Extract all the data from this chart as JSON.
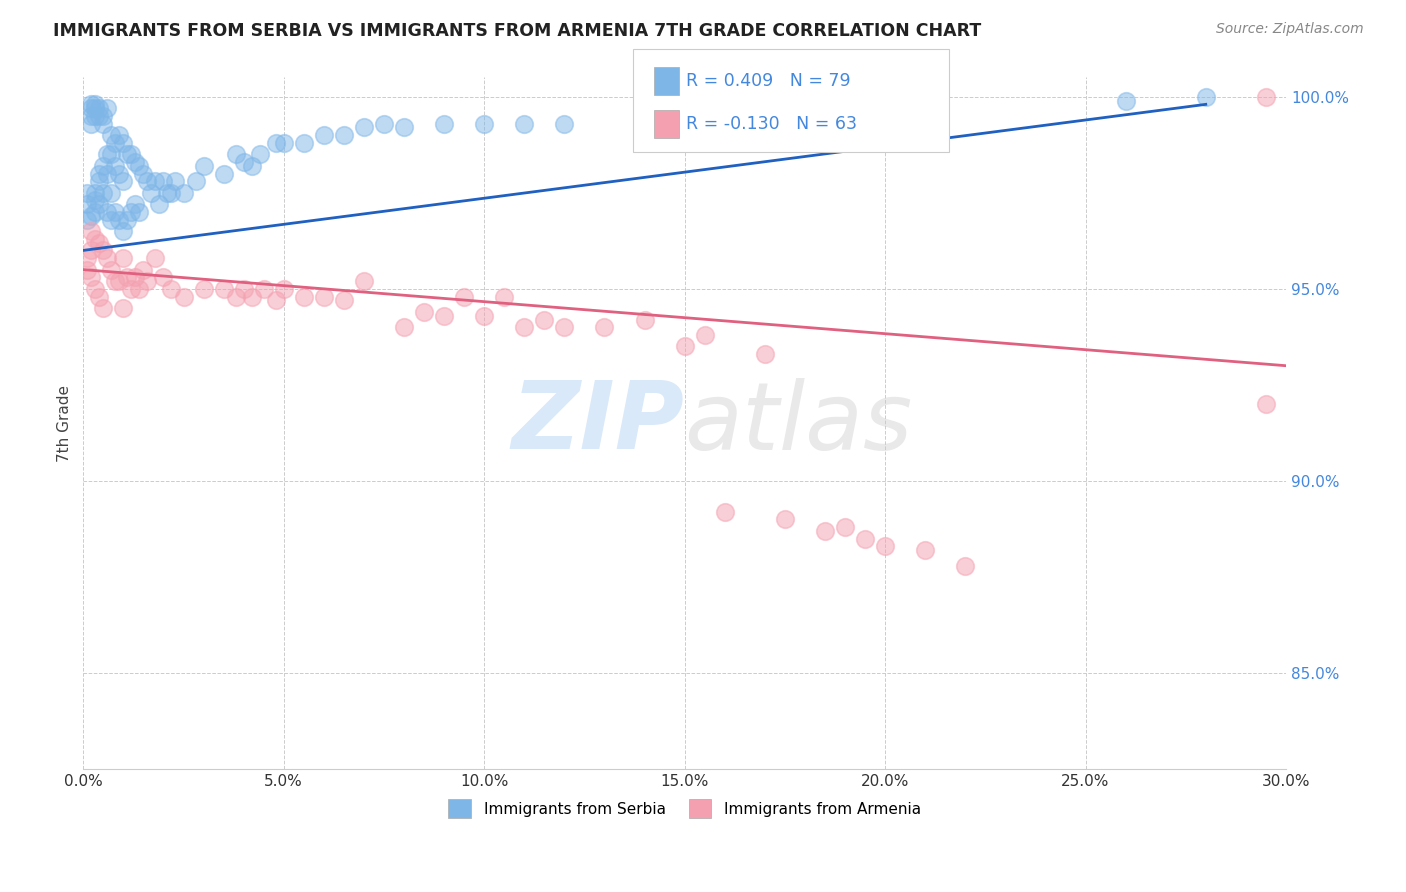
{
  "title": "IMMIGRANTS FROM SERBIA VS IMMIGRANTS FROM ARMENIA 7TH GRADE CORRELATION CHART",
  "source": "Source: ZipAtlas.com",
  "ylabel": "7th Grade",
  "xlim": [
    0.0,
    0.3
  ],
  "ylim": [
    0.825,
    1.005
  ],
  "xticks": [
    0.0,
    0.05,
    0.1,
    0.15,
    0.2,
    0.25,
    0.3
  ],
  "xticklabels": [
    "0.0%",
    "5.0%",
    "10.0%",
    "15.0%",
    "20.0%",
    "25.0%",
    "30.0%"
  ],
  "yticks": [
    0.85,
    0.9,
    0.95,
    1.0
  ],
  "yticklabels": [
    "85.0%",
    "90.0%",
    "95.0%",
    "100.0%"
  ],
  "serbia_color": "#7eb6e8",
  "armenia_color": "#f4a0b0",
  "trend_serbia_color": "#2060c0",
  "trend_armenia_color": "#e06080",
  "legend_r_serbia": "R = 0.409",
  "legend_n_serbia": "N = 79",
  "legend_r_armenia": "R = -0.130",
  "legend_n_armenia": "N = 63",
  "legend_label_serbia": "Immigrants from Serbia",
  "legend_label_armenia": "Immigrants from Armenia",
  "watermark_zip": "ZIP",
  "watermark_atlas": "atlas",
  "trend_serbia_x0": 0.0,
  "trend_serbia_x1": 0.28,
  "trend_serbia_y0": 0.96,
  "trend_serbia_y1": 0.998,
  "trend_armenia_x0": 0.0,
  "trend_armenia_x1": 0.3,
  "trend_armenia_y0": 0.955,
  "trend_armenia_y1": 0.93,
  "serbia_x": [
    0.001,
    0.001,
    0.001,
    0.002,
    0.002,
    0.002,
    0.002,
    0.002,
    0.003,
    0.003,
    0.003,
    0.003,
    0.003,
    0.003,
    0.004,
    0.004,
    0.004,
    0.004,
    0.004,
    0.005,
    0.005,
    0.005,
    0.005,
    0.006,
    0.006,
    0.006,
    0.006,
    0.007,
    0.007,
    0.007,
    0.007,
    0.008,
    0.008,
    0.008,
    0.009,
    0.009,
    0.009,
    0.01,
    0.01,
    0.01,
    0.011,
    0.011,
    0.012,
    0.012,
    0.013,
    0.013,
    0.014,
    0.014,
    0.015,
    0.016,
    0.017,
    0.018,
    0.019,
    0.02,
    0.021,
    0.022,
    0.023,
    0.025,
    0.028,
    0.03,
    0.035,
    0.038,
    0.04,
    0.042,
    0.044,
    0.048,
    0.05,
    0.055,
    0.06,
    0.065,
    0.07,
    0.075,
    0.08,
    0.09,
    0.1,
    0.11,
    0.12,
    0.26,
    0.28
  ],
  "serbia_y": [
    0.975,
    0.972,
    0.968,
    0.998,
    0.997,
    0.995,
    0.993,
    0.969,
    0.998,
    0.997,
    0.995,
    0.975,
    0.973,
    0.97,
    0.997,
    0.995,
    0.98,
    0.978,
    0.972,
    0.995,
    0.993,
    0.982,
    0.975,
    0.997,
    0.985,
    0.98,
    0.97,
    0.99,
    0.985,
    0.975,
    0.968,
    0.988,
    0.982,
    0.97,
    0.99,
    0.98,
    0.968,
    0.988,
    0.978,
    0.965,
    0.985,
    0.968,
    0.985,
    0.97,
    0.983,
    0.972,
    0.982,
    0.97,
    0.98,
    0.978,
    0.975,
    0.978,
    0.972,
    0.978,
    0.975,
    0.975,
    0.978,
    0.975,
    0.978,
    0.982,
    0.98,
    0.985,
    0.983,
    0.982,
    0.985,
    0.988,
    0.988,
    0.988,
    0.99,
    0.99,
    0.992,
    0.993,
    0.992,
    0.993,
    0.993,
    0.993,
    0.993,
    0.999,
    1.0
  ],
  "armenia_x": [
    0.001,
    0.001,
    0.002,
    0.002,
    0.002,
    0.003,
    0.003,
    0.004,
    0.004,
    0.005,
    0.005,
    0.006,
    0.007,
    0.008,
    0.009,
    0.01,
    0.01,
    0.011,
    0.012,
    0.013,
    0.014,
    0.015,
    0.016,
    0.018,
    0.02,
    0.022,
    0.025,
    0.03,
    0.035,
    0.038,
    0.04,
    0.042,
    0.045,
    0.048,
    0.05,
    0.055,
    0.06,
    0.065,
    0.07,
    0.08,
    0.085,
    0.09,
    0.095,
    0.1,
    0.105,
    0.11,
    0.115,
    0.12,
    0.13,
    0.14,
    0.15,
    0.155,
    0.16,
    0.17,
    0.175,
    0.185,
    0.19,
    0.195,
    0.2,
    0.21,
    0.22,
    0.295,
    0.295
  ],
  "armenia_y": [
    0.958,
    0.955,
    0.965,
    0.96,
    0.953,
    0.963,
    0.95,
    0.962,
    0.948,
    0.96,
    0.945,
    0.958,
    0.955,
    0.952,
    0.952,
    0.958,
    0.945,
    0.953,
    0.95,
    0.953,
    0.95,
    0.955,
    0.952,
    0.958,
    0.953,
    0.95,
    0.948,
    0.95,
    0.95,
    0.948,
    0.95,
    0.948,
    0.95,
    0.947,
    0.95,
    0.948,
    0.948,
    0.947,
    0.952,
    0.94,
    0.944,
    0.943,
    0.948,
    0.943,
    0.948,
    0.94,
    0.942,
    0.94,
    0.94,
    0.942,
    0.935,
    0.938,
    0.892,
    0.933,
    0.89,
    0.887,
    0.888,
    0.885,
    0.883,
    0.882,
    0.878,
    0.92,
    1.0
  ]
}
